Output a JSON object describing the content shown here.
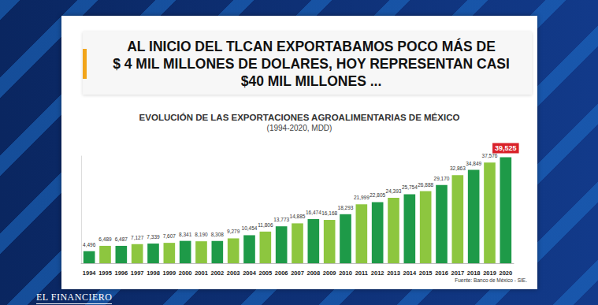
{
  "chart_data": {
    "type": "bar",
    "title": "EVOLUCIÓN DE LAS EXPORTACIONES AGROALIMENTARIAS DE MÉXICO",
    "subtitle": "(1994-2020, MDD)",
    "annotations": [
      "AL INICIO DEL TLCAN EXPORTABAMOS POCO MÁS DE\n$ 4 MIL MILLONES DE DOLARES, HOY REPRESENTAN CASI\n$40 MIL MILLONES ...",
      "Fuente: Banco de México - SIE.",
      "EL FINANCIERO"
    ],
    "categories": [
      "1994",
      "1995",
      "1996",
      "1997",
      "1998",
      "1999",
      "2000",
      "2001",
      "2002",
      "2003",
      "2004",
      "2005",
      "2006",
      "2007",
      "2008",
      "2009",
      "2010",
      "2011",
      "2012",
      "2013",
      "2014",
      "2015",
      "2016",
      "2017",
      "2018",
      "2019",
      "2020"
    ],
    "values": [
      4496,
      6489,
      6487,
      7127,
      7339,
      7607,
      8341,
      8190,
      8308,
      9279,
      10454,
      11806,
      13773,
      14885,
      16474,
      16168,
      18293,
      21999,
      22805,
      24393,
      25754,
      26888,
      29170,
      32863,
      34849,
      37576,
      39525
    ],
    "value_labels": [
      "4,496",
      "6,489",
      "6,487",
      "7,127",
      "7,339",
      "7,607",
      "8,341",
      "8,190",
      "8,308",
      "9,279",
      "10,454",
      "11,806",
      "13,773",
      "14,885",
      "16,474",
      "16,168",
      "18,293",
      "21,999",
      "22,805",
      "24,393",
      "25,754",
      "26,888",
      "29,170",
      "32,863",
      "34,849",
      "37,576",
      "39,525"
    ],
    "colors": [
      "#1e9a48",
      "#8dc63f",
      "#1e9a48",
      "#8dc63f",
      "#1e9a48",
      "#8dc63f",
      "#1e9a48",
      "#8dc63f",
      "#1e9a48",
      "#8dc63f",
      "#1e9a48",
      "#8dc63f",
      "#1e9a48",
      "#8dc63f",
      "#1e9a48",
      "#8dc63f",
      "#1e9a48",
      "#8dc63f",
      "#1e9a48",
      "#8dc63f",
      "#1e9a48",
      "#8dc63f",
      "#1e9a48",
      "#8dc63f",
      "#1e9a48",
      "#8dc63f",
      "#1e9a48"
    ],
    "ylim": [
      0,
      40000
    ],
    "data_labels": true,
    "tick_labels": "x",
    "grid": false
  }
}
